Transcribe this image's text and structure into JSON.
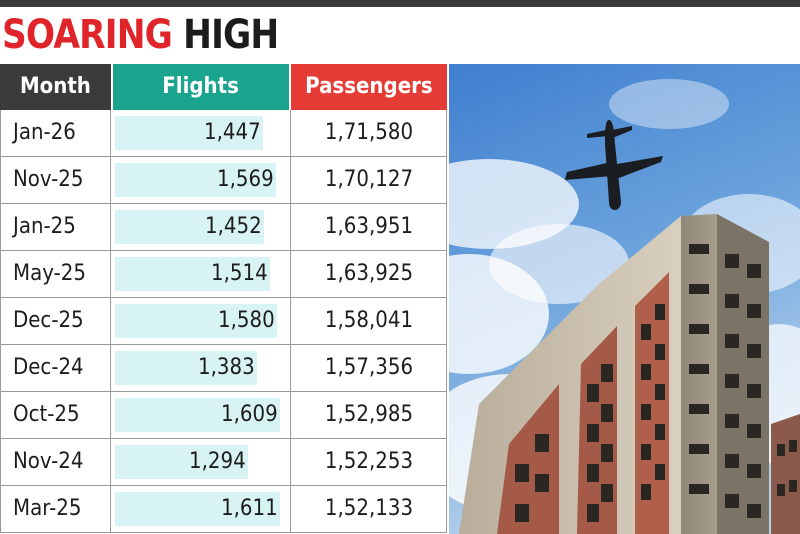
{
  "title": {
    "part1": "SOARING",
    "part2": "HIGH"
  },
  "colors": {
    "title_red": "#e0252a",
    "month_header": "#3b3b3b",
    "flights_header": "#1aa48d",
    "passengers_header": "#e53d36",
    "flights_bar": "#d8f3f3"
  },
  "photo": {
    "description_icon": "airplane-over-building-photo"
  },
  "chart_data": {
    "type": "table",
    "title": "SOARING HIGH",
    "columns": [
      "Month",
      "Flights",
      "Passengers"
    ],
    "rows": [
      {
        "month": "Jan-26",
        "flights": 1447,
        "flights_label": "1,447",
        "passengers": "1,71,580"
      },
      {
        "month": "Nov-25",
        "flights": 1569,
        "flights_label": "1,569",
        "passengers": "1,70,127"
      },
      {
        "month": "Jan-25",
        "flights": 1452,
        "flights_label": "1,452",
        "passengers": "1,63,951"
      },
      {
        "month": "May-25",
        "flights": 1514,
        "flights_label": "1,514",
        "passengers": "1,63,925"
      },
      {
        "month": "Dec-25",
        "flights": 1580,
        "flights_label": "1,580",
        "passengers": "1,58,041"
      },
      {
        "month": "Dec-24",
        "flights": 1383,
        "flights_label": "1,383",
        "passengers": "1,57,356"
      },
      {
        "month": "Oct-25",
        "flights": 1609,
        "flights_label": "1,609",
        "passengers": "1,52,985"
      },
      {
        "month": "Nov-24",
        "flights": 1294,
        "flights_label": "1,294",
        "passengers": "1,52,253"
      },
      {
        "month": "Mar-25",
        "flights": 1611,
        "flights_label": "1,611",
        "passengers": "1,52,133"
      }
    ]
  }
}
